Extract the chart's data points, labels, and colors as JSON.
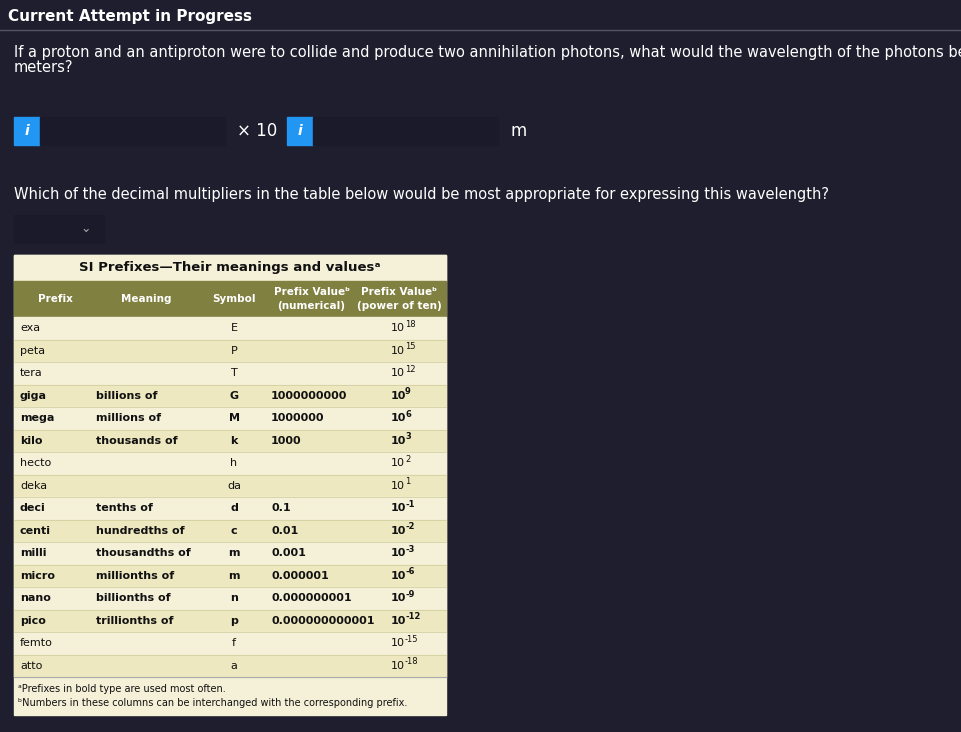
{
  "bg_color": "#1e1e2e",
  "header_text": "Current Attempt in Progress",
  "question_line1": "If a proton and an antiproton were to collide and produce two annihilation photons, what would the wavelength of the photons be, in",
  "question_line2": "meters?",
  "second_question": "Which of the decimal multipliers in the table below would be most appropriate for expressing this wavelength?",
  "table_title": "SI Prefixes—Their meanings and valuesᵃ",
  "col_headers": [
    "Prefix",
    "Meaning",
    "Symbol",
    "Prefix Valueᵇ\n(numerical)",
    "Prefix Valueᵇ\n(power of ten)"
  ],
  "table_bg": "#f5f0d8",
  "table_bg_alt": "#eee8c0",
  "header_bg": "#808040",
  "header_fg": "#ffffff",
  "rows": [
    [
      "exa",
      "",
      "E",
      "",
      "10",
      "18"
    ],
    [
      "peta",
      "",
      "P",
      "",
      "10",
      "15"
    ],
    [
      "tera",
      "",
      "T",
      "",
      "10",
      "12"
    ],
    [
      "giga",
      "billions of",
      "G",
      "1000000000",
      "10",
      "9"
    ],
    [
      "mega",
      "millions of",
      "M",
      "1000000",
      "10",
      "6"
    ],
    [
      "kilo",
      "thousands of",
      "k",
      "1000",
      "10",
      "3"
    ],
    [
      "hecto",
      "",
      "h",
      "",
      "10",
      "2"
    ],
    [
      "deka",
      "",
      "da",
      "",
      "10",
      "1"
    ],
    [
      "deci",
      "tenths of",
      "d",
      "0.1",
      "10",
      "-1"
    ],
    [
      "centi",
      "hundredths of",
      "c",
      "0.01",
      "10",
      "-2"
    ],
    [
      "milli",
      "thousandths of",
      "m",
      "0.001",
      "10",
      "-3"
    ],
    [
      "micro",
      "millionths of",
      "m",
      "0.000001",
      "10",
      "-6"
    ],
    [
      "nano",
      "billionths of",
      "n",
      "0.000000001",
      "10",
      "-9"
    ],
    [
      "pico",
      "trillionths of",
      "p",
      "0.000000000001",
      "10",
      "-12"
    ],
    [
      "femto",
      "",
      "f",
      "",
      "10",
      "-15"
    ],
    [
      "atto",
      "",
      "a",
      "",
      "10",
      "-18"
    ]
  ],
  "bold_rows": [
    3,
    4,
    5,
    8,
    9,
    10,
    11,
    12,
    13
  ],
  "footnote_a": "ᵃPrefixes in bold type are used most often.",
  "footnote_b": "ᵇNumbers in these columns can be interchanged with the corresponding prefix.",
  "blue_btn": "#2196F3",
  "input_bg": "#1a1a2a",
  "input_border": "#555566"
}
